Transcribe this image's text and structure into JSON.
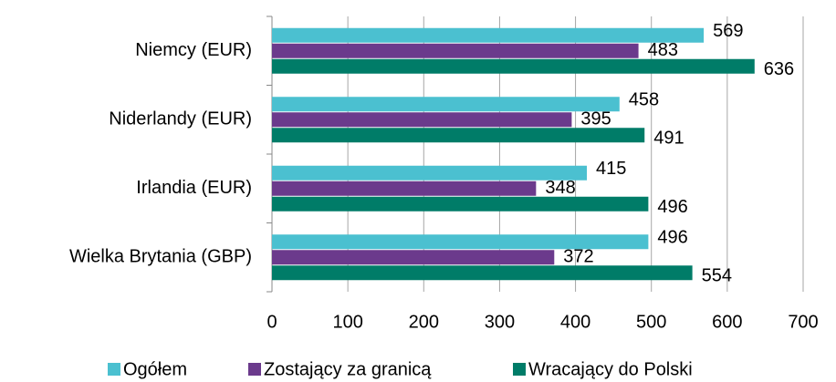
{
  "chart_data": {
    "type": "hbar",
    "categories": [
      "Niemcy (EUR)",
      "Niderlandy (EUR)",
      "Irlandia (EUR)",
      "Wielka Brytania (GBP)"
    ],
    "series": [
      {
        "name": "Ogółem",
        "color": "#4bc0d0",
        "values": [
          569,
          458,
          415,
          496
        ]
      },
      {
        "name": "Zostający za granicą",
        "color": "#6b3a8c",
        "values": [
          483,
          395,
          348,
          372
        ]
      },
      {
        "name": "Wracający do Polski",
        "color": "#007c68",
        "values": [
          636,
          491,
          496,
          554
        ]
      }
    ],
    "xlim": [
      0,
      700
    ],
    "xticks": [
      0,
      100,
      200,
      300,
      400,
      500,
      600,
      700
    ],
    "grid": true,
    "legend": "bottom"
  }
}
